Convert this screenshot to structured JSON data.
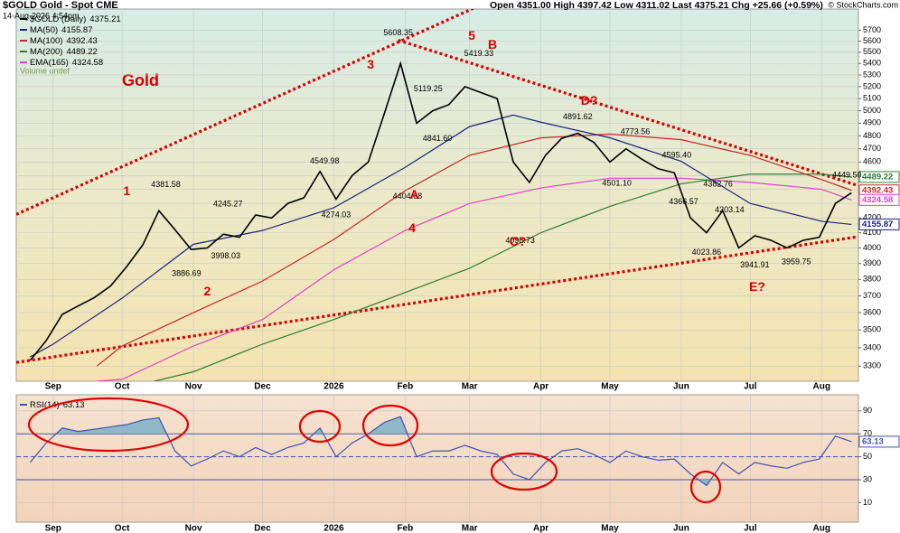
{
  "header": {
    "symbol": "$GOLD Gold - Spot CME",
    "date": "14-Aug-2026 4:54pm",
    "quote": "Open 4351.00 High 4397.42 Low 4311.02 Last 4375.21 Chg +25.66 (+0.59%)",
    "credit": "© StockCharts.com"
  },
  "chart_data": [
    {
      "type": "line",
      "title": "Gold",
      "log_scale": true,
      "grid": true,
      "xlim": [
        "2025-08-16",
        "2026-08-17"
      ],
      "xticks": [
        {
          "value": "2025-09-01",
          "label": "Sep"
        },
        {
          "value": "2025-10-01",
          "label": "Oct"
        },
        {
          "value": "2025-11-01",
          "label": "Nov"
        },
        {
          "value": "2025-12-01",
          "label": "Dec"
        },
        {
          "value": "2026-01-01",
          "label": "2026"
        },
        {
          "value": "2026-02-01",
          "label": "Feb"
        },
        {
          "value": "2026-03-01",
          "label": "Mar"
        },
        {
          "value": "2026-04-01",
          "label": "Apr"
        },
        {
          "value": "2026-05-01",
          "label": "May"
        },
        {
          "value": "2026-06-01",
          "label": "Jun"
        },
        {
          "value": "2026-07-01",
          "label": "Jul"
        },
        {
          "value": "2026-08-01",
          "label": "Aug"
        }
      ],
      "ylim": [
        3220,
        5900
      ],
      "yticks": [
        3300,
        3400,
        3500,
        3600,
        3700,
        3800,
        3900,
        4000,
        4100,
        4200,
        4300,
        4400,
        4500,
        4600,
        4700,
        4800,
        4900,
        5000,
        5100,
        5200,
        5300,
        5400,
        5500,
        5600,
        5700
      ],
      "series": [
        {
          "name": "$GOLD (Daily)",
          "color": "#000000",
          "x": [
            "2025-08-22",
            "2025-08-29",
            "2025-09-05",
            "2025-09-12",
            "2025-09-19",
            "2025-09-26",
            "2025-10-03",
            "2025-10-10",
            "2025-10-17",
            "2025-10-24",
            "2025-10-31",
            "2025-11-07",
            "2025-11-14",
            "2025-11-21",
            "2025-11-28",
            "2025-12-05",
            "2025-12-12",
            "2025-12-19",
            "2025-12-26",
            "2026-01-02",
            "2026-01-09",
            "2026-01-16",
            "2026-01-23",
            "2026-01-30",
            "2026-02-06",
            "2026-02-13",
            "2026-02-20",
            "2026-02-27",
            "2026-03-06",
            "2026-03-13",
            "2026-03-20",
            "2026-03-27",
            "2026-04-03",
            "2026-04-10",
            "2026-04-17",
            "2026-04-24",
            "2026-05-01",
            "2026-05-08",
            "2026-05-15",
            "2026-05-22",
            "2026-05-29",
            "2026-06-05",
            "2026-06-12",
            "2026-06-19",
            "2026-06-26",
            "2026-07-03",
            "2026-07-10",
            "2026-07-17",
            "2026-07-24",
            "2026-07-31",
            "2026-08-07",
            "2026-08-14"
          ],
          "values": [
            3330,
            3440,
            3590,
            3640,
            3690,
            3760,
            3880,
            4020,
            4250,
            4120,
            3990,
            4000,
            4090,
            4070,
            4220,
            4200,
            4300,
            4340,
            4530,
            4330,
            4500,
            4600,
            4980,
            5400,
            4900,
            5000,
            5050,
            5200,
            5150,
            5100,
            4600,
            4450,
            4650,
            4780,
            4820,
            4750,
            4600,
            4700,
            4620,
            4550,
            4520,
            4200,
            4100,
            4250,
            4000,
            4080,
            4050,
            4000,
            4050,
            4070,
            4300,
            4375.21
          ]
        },
        {
          "name": "MA(50)",
          "color": "#1a237e",
          "x": [
            "2025-08-22",
            "2025-09-01",
            "2025-10-01",
            "2025-11-01",
            "2025-12-01",
            "2026-01-01",
            "2026-02-01",
            "2026-03-01",
            "2026-03-20",
            "2026-04-01",
            "2026-05-01",
            "2026-06-01",
            "2026-07-01",
            "2026-08-01",
            "2026-08-14"
          ],
          "values": [
            3350,
            3420,
            3686,
            4024,
            4115,
            4270,
            4560,
            4873,
            4965,
            4908,
            4785,
            4605,
            4300,
            4177,
            4155.87
          ]
        },
        {
          "name": "MA(100)",
          "color": "#c62828",
          "x": [
            "2025-09-20",
            "2025-10-01",
            "2025-11-01",
            "2025-12-01",
            "2026-01-01",
            "2026-02-01",
            "2026-03-01",
            "2026-04-01",
            "2026-05-01",
            "2026-06-01",
            "2026-07-01",
            "2026-08-01",
            "2026-08-14"
          ],
          "values": [
            3300,
            3410,
            3600,
            3790,
            4055,
            4390,
            4650,
            4784,
            4814,
            4770,
            4650,
            4470,
            4392.43
          ]
        },
        {
          "name": "MA(200)",
          "color": "#2e7d32",
          "x": [
            "2025-10-15",
            "2025-11-01",
            "2025-12-01",
            "2026-01-01",
            "2026-02-01",
            "2026-03-01",
            "2026-04-01",
            "2026-05-01",
            "2026-06-01",
            "2026-07-01",
            "2026-08-01",
            "2026-08-14"
          ],
          "values": [
            3220,
            3270,
            3420,
            3560,
            3720,
            3870,
            4100,
            4280,
            4440,
            4510,
            4510,
            4489.22
          ]
        },
        {
          "name": "EMA(165)",
          "color": "#e040c8",
          "x": [
            "2025-09-20",
            "2025-10-01",
            "2025-11-01",
            "2025-12-01",
            "2026-01-01",
            "2026-02-01",
            "2026-03-01",
            "2026-04-01",
            "2026-05-01",
            "2026-06-01",
            "2026-07-01",
            "2026-08-01",
            "2026-08-14"
          ],
          "values": [
            3220,
            3230,
            3410,
            3560,
            3860,
            4115,
            4300,
            4410,
            4480,
            4480,
            4450,
            4400,
            4324.58
          ]
        }
      ],
      "legend_note": "Volume undef",
      "high_labels": [
        {
          "x": "2025-10-20",
          "value": 4381.58
        },
        {
          "x": "2025-11-16",
          "value": 4245.27
        },
        {
          "x": "2025-12-28",
          "value": 4549.98
        },
        {
          "x": "2026-01-29",
          "value": 5608.35
        },
        {
          "x": "2026-02-11",
          "value": 5119.25
        },
        {
          "x": "2026-03-05",
          "value": 5419.33
        },
        {
          "x": "2026-04-17",
          "value": 4891.62
        },
        {
          "x": "2026-05-12",
          "value": 4773.56
        },
        {
          "x": "2026-05-30",
          "value": {
            "value": 4595.4,
            "label": "4595.40"
          }
        },
        {
          "x": "2026-06-17",
          "value": 4382.76
        },
        {
          "x": "2026-06-22",
          "value": 4203.14
        },
        {
          "x": "2026-08-12",
          "value": {
            "value": 4449.5,
            "label": "4449.50"
          }
        }
      ],
      "low_labels": [
        {
          "x": "2025-10-29",
          "value": 3886.69
        },
        {
          "x": "2025-11-15",
          "value": 3998.03
        },
        {
          "x": "2026-01-02",
          "value": 4274.03
        },
        {
          "x": "2026-02-02",
          "value": 4404.68
        },
        {
          "x": "2026-02-15",
          "value": {
            "value": 4841.6,
            "label": "4841.60"
          }
        },
        {
          "x": "2026-03-23",
          "value": 4098.73
        },
        {
          "x": "2026-05-04",
          "value": {
            "value": 4501.1,
            "label": "4501.10"
          }
        },
        {
          "x": "2026-06-02",
          "value": 4366.57
        },
        {
          "x": "2026-06-12",
          "value": 4023.86
        },
        {
          "x": "2026-07-03",
          "value": 3941.91
        },
        {
          "x": "2026-07-21",
          "value": 3959.75
        }
      ],
      "wave_labels": [
        {
          "text": "1",
          "x": "2025-10-03",
          "y": 4382
        },
        {
          "text": "2",
          "x": "2025-11-07",
          "y": 3722
        },
        {
          "text": "3",
          "x": "2026-01-17",
          "y": 5383
        },
        {
          "text": "4",
          "x": "2026-02-04",
          "y": 4126
        },
        {
          "text": "5",
          "x": "2026-03-02",
          "y": 5642
        },
        {
          "text": "A",
          "x": "2026-02-05",
          "y": 4356
        },
        {
          "text": "B",
          "x": "2026-03-11",
          "y": 5560
        },
        {
          "text": "C?",
          "x": "2026-03-22",
          "y": 4037
        },
        {
          "text": "D?",
          "x": "2026-04-22",
          "y": 5075
        },
        {
          "text": "E?",
          "x": "2026-07-04",
          "y": 3751
        }
      ],
      "trendlines": {
        "color": "#d50000",
        "lines": [
          {
            "x": [
              "2025-08-16",
              "2026-03-06"
            ],
            "values": [
              4224,
              5940
            ]
          },
          {
            "x": [
              "2026-01-29",
              "2026-08-17"
            ],
            "values": [
              5608.35,
              4426
            ]
          },
          {
            "x": [
              "2025-08-16",
              "2026-08-17"
            ],
            "values": [
              3320,
              4074
            ]
          }
        ]
      }
    },
    {
      "type": "line",
      "grid": true,
      "xlim": [
        "2025-08-16",
        "2026-08-17"
      ],
      "xticks": [
        {
          "value": "2025-09-01",
          "label": "Sep"
        },
        {
          "value": "2025-10-01",
          "label": "Oct"
        },
        {
          "value": "2025-11-01",
          "label": "Nov"
        },
        {
          "value": "2025-12-01",
          "label": "Dec"
        },
        {
          "value": "2026-01-01",
          "label": "2026"
        },
        {
          "value": "2026-02-01",
          "label": "Feb"
        },
        {
          "value": "2026-03-01",
          "label": "Mar"
        },
        {
          "value": "2026-04-01",
          "label": "Apr"
        },
        {
          "value": "2026-05-01",
          "label": "May"
        },
        {
          "value": "2026-06-01",
          "label": "Jun"
        },
        {
          "value": "2026-07-01",
          "label": "Jul"
        },
        {
          "value": "2026-08-01",
          "label": "Aug"
        }
      ],
      "ylim": [
        -7,
        104
      ],
      "yticks": [
        10,
        30,
        50,
        70,
        90
      ],
      "overbought": 70,
      "midline": 50,
      "oversold": 30,
      "fill_color": "#7fb2c8",
      "series": [
        {
          "name": "RSI(14)",
          "color": "#3f51b5",
          "x": [
            "2025-08-22",
            "2025-08-29",
            "2025-09-05",
            "2025-09-12",
            "2025-09-19",
            "2025-09-26",
            "2025-10-03",
            "2025-10-10",
            "2025-10-17",
            "2025-10-24",
            "2025-10-31",
            "2025-11-07",
            "2025-11-14",
            "2025-11-21",
            "2025-11-28",
            "2025-12-05",
            "2025-12-12",
            "2025-12-19",
            "2025-12-26",
            "2026-01-02",
            "2026-01-09",
            "2026-01-16",
            "2026-01-23",
            "2026-01-30",
            "2026-02-06",
            "2026-02-13",
            "2026-02-20",
            "2026-02-27",
            "2026-03-06",
            "2026-03-13",
            "2026-03-20",
            "2026-03-27",
            "2026-04-03",
            "2026-04-10",
            "2026-04-17",
            "2026-04-24",
            "2026-05-01",
            "2026-05-08",
            "2026-05-15",
            "2026-05-22",
            "2026-05-29",
            "2026-06-05",
            "2026-06-12",
            "2026-06-19",
            "2026-06-26",
            "2026-07-03",
            "2026-07-10",
            "2026-07-17",
            "2026-07-24",
            "2026-07-31",
            "2026-08-07",
            "2026-08-14"
          ],
          "values": [
            45,
            62,
            75,
            72,
            74,
            76,
            78,
            82,
            84,
            55,
            42,
            48,
            55,
            50,
            58,
            52,
            58,
            62,
            75,
            50,
            62,
            70,
            80,
            85,
            50,
            55,
            55,
            60,
            55,
            52,
            35,
            30,
            45,
            55,
            57,
            52,
            45,
            55,
            50,
            47,
            48,
            35,
            25,
            45,
            35,
            45,
            42,
            40,
            45,
            48,
            68,
            63.13
          ]
        }
      ]
    }
  ]
}
